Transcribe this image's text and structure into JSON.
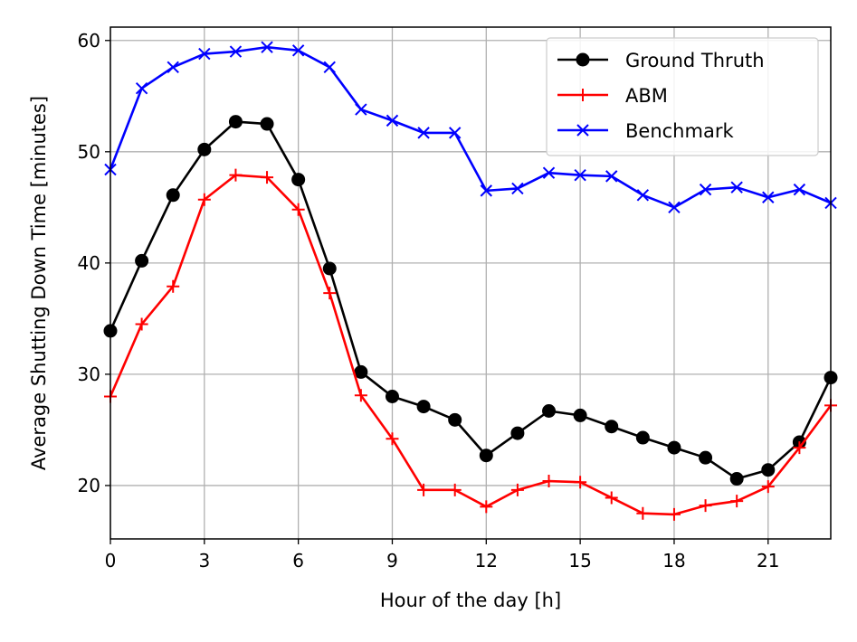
{
  "chart_data": {
    "type": "line",
    "title": "",
    "xlabel": "Hour of the day [h]",
    "ylabel": "Average Shutting Down Time [minutes]",
    "xlim": [
      0,
      23
    ],
    "ylim": [
      15.2,
      61.2
    ],
    "xticks": [
      0,
      3,
      6,
      9,
      12,
      15,
      18,
      21
    ],
    "yticks": [
      20,
      30,
      40,
      50,
      60
    ],
    "grid": true,
    "legend_position": "top-right",
    "x": [
      0,
      1,
      2,
      3,
      4,
      5,
      6,
      7,
      8,
      9,
      10,
      11,
      12,
      13,
      14,
      15,
      16,
      17,
      18,
      19,
      20,
      21,
      22,
      23
    ],
    "series": [
      {
        "name": "Ground Thruth",
        "color": "#000000",
        "marker": "circle",
        "values": [
          33.9,
          40.2,
          46.1,
          50.2,
          52.7,
          52.5,
          47.5,
          39.5,
          30.2,
          28.0,
          27.1,
          25.9,
          22.7,
          24.7,
          26.7,
          26.3,
          25.3,
          24.3,
          23.4,
          22.5,
          20.6,
          21.4,
          23.9,
          29.7
        ]
      },
      {
        "name": "ABM",
        "color": "#ff0000",
        "marker": "plus",
        "values": [
          28.0,
          34.5,
          37.9,
          45.7,
          47.9,
          47.7,
          44.8,
          37.3,
          28.1,
          24.2,
          19.6,
          19.6,
          18.1,
          19.6,
          20.4,
          20.3,
          18.9,
          17.5,
          17.4,
          18.2,
          18.6,
          19.9,
          23.4,
          27.2
        ]
      },
      {
        "name": "Benchmark",
        "color": "#0000ff",
        "marker": "x",
        "values": [
          48.4,
          55.7,
          57.6,
          58.8,
          59.0,
          59.4,
          59.1,
          57.6,
          53.8,
          52.8,
          51.7,
          51.7,
          46.5,
          46.7,
          48.1,
          47.9,
          47.8,
          46.1,
          45.0,
          46.6,
          46.8,
          45.9,
          46.6,
          45.4
        ]
      }
    ]
  }
}
